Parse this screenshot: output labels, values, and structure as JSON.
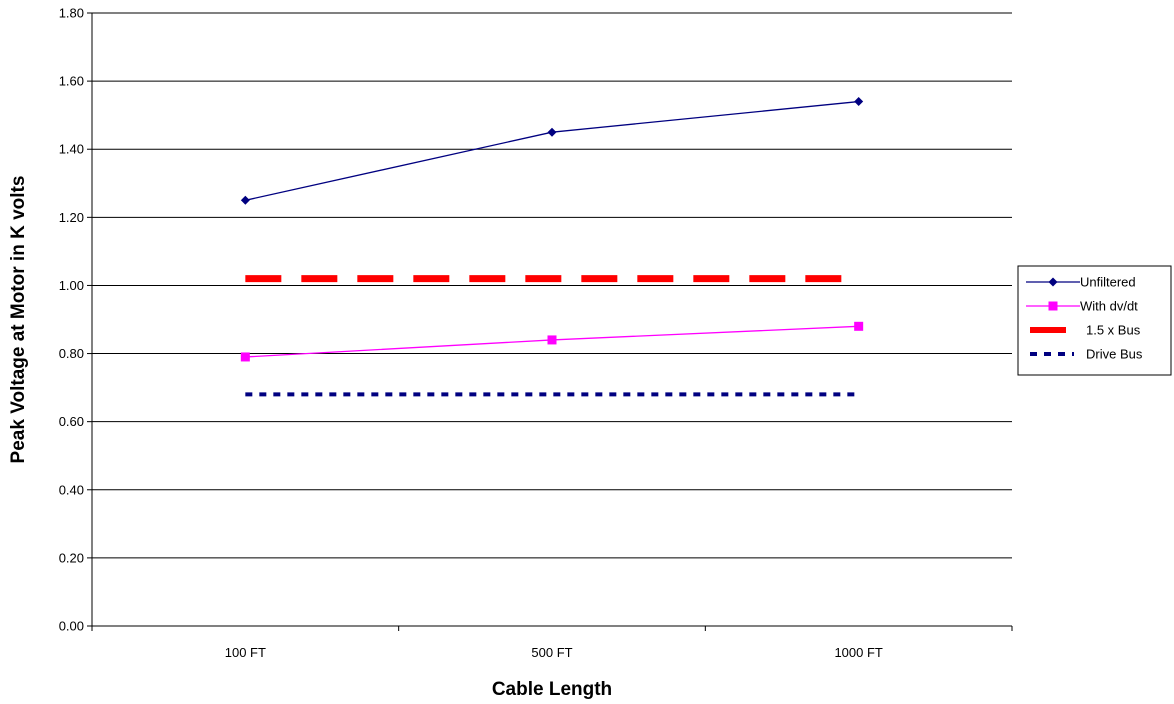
{
  "chart_data": {
    "type": "line",
    "title": "",
    "xlabel": "Cable Length",
    "ylabel": "Peak Voltage at Motor in K volts",
    "categories": [
      "100 FT",
      "500 FT",
      "1000 FT"
    ],
    "ylim": [
      0,
      1.8
    ],
    "yticks": [
      "0.00",
      "0.20",
      "0.40",
      "0.60",
      "0.80",
      "1.00",
      "1.20",
      "1.40",
      "1.60",
      "1.80"
    ],
    "grid": true,
    "legend_position": "right",
    "series": [
      {
        "name": "Unfiltered",
        "values": [
          1.25,
          1.45,
          1.54
        ],
        "color": "#000080",
        "marker": "diamond",
        "style": "solid"
      },
      {
        "name": "With dv/dt",
        "values": [
          0.79,
          0.84,
          0.88
        ],
        "color": "#ff00ff",
        "marker": "square",
        "style": "solid"
      },
      {
        "name": "1.5 x Bus",
        "values": [
          1.02,
          1.02,
          1.02
        ],
        "color": "#ff0000",
        "marker": "none",
        "style": "dashed"
      },
      {
        "name": "Drive Bus",
        "values": [
          0.68,
          0.68,
          0.68
        ],
        "color": "#000080",
        "marker": "none",
        "style": "dotted"
      }
    ]
  }
}
